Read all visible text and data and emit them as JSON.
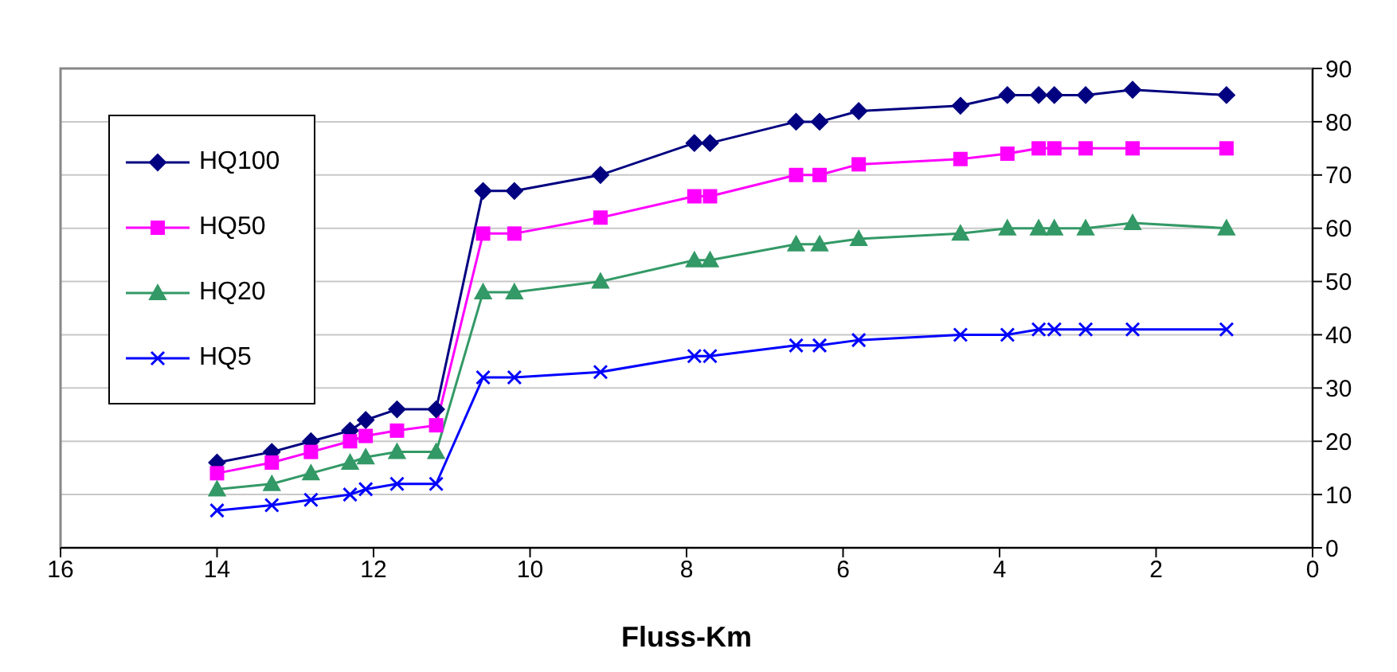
{
  "chart_data": {
    "type": "line",
    "xlabel": "Fluss-Km",
    "x": [
      14.0,
      13.3,
      12.8,
      12.3,
      12.1,
      11.7,
      11.2,
      10.6,
      10.2,
      9.1,
      7.9,
      7.7,
      6.6,
      6.3,
      5.8,
      4.5,
      3.9,
      3.5,
      3.3,
      2.9,
      2.3,
      1.1
    ],
    "series": [
      {
        "name": "HQ100",
        "color": "#000080",
        "marker": "diamond",
        "values": [
          16,
          18,
          20,
          22,
          24,
          26,
          26,
          67,
          67,
          70,
          76,
          76,
          80,
          80,
          82,
          83,
          85,
          85,
          85,
          85,
          86,
          85
        ]
      },
      {
        "name": "HQ50",
        "color": "#ff00ff",
        "marker": "square",
        "values": [
          14,
          16,
          18,
          20,
          21,
          22,
          23,
          59,
          59,
          62,
          66,
          66,
          70,
          70,
          72,
          73,
          74,
          75,
          75,
          75,
          75,
          75
        ]
      },
      {
        "name": "HQ20",
        "color": "#339966",
        "marker": "triangle",
        "values": [
          11,
          12,
          14,
          16,
          17,
          18,
          18,
          48,
          48,
          50,
          54,
          54,
          57,
          57,
          58,
          59,
          60,
          60,
          60,
          60,
          61,
          60
        ]
      },
      {
        "name": "HQ5",
        "color": "#0000ff",
        "marker": "cross",
        "values": [
          7,
          8,
          9,
          10,
          11,
          12,
          12,
          32,
          32,
          33,
          36,
          36,
          38,
          38,
          39,
          40,
          40,
          41,
          41,
          41,
          41,
          41
        ]
      }
    ],
    "xlim": [
      16,
      0
    ],
    "xticks": [
      16,
      14,
      12,
      10,
      8,
      6,
      4,
      2,
      0
    ],
    "ylim": [
      0,
      90
    ],
    "yticks": [
      0,
      10,
      20,
      30,
      40,
      50,
      60,
      70,
      80,
      90
    ],
    "grid": "y",
    "legend": "top left",
    "line_style": "solid"
  }
}
